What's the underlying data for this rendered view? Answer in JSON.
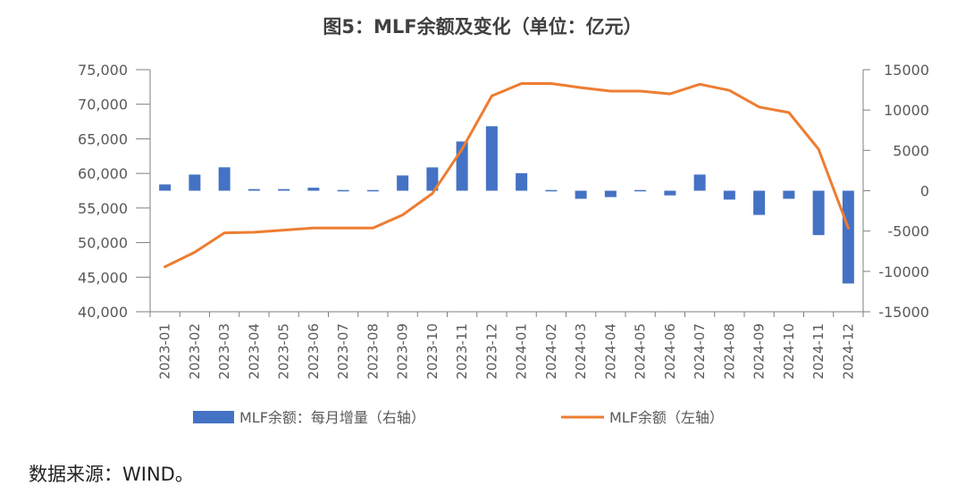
{
  "chart_data": {
    "type": "bar+line",
    "title": "图5：MLF余额及变化（单位：亿元）",
    "categories": [
      "2023-01",
      "2023-02",
      "2023-03",
      "2023-04",
      "2023-05",
      "2023-06",
      "2023-07",
      "2023-08",
      "2023-09",
      "2023-10",
      "2023-11",
      "2023-12",
      "2024-01",
      "2024-02",
      "2024-03",
      "2024-04",
      "2024-05",
      "2024-06",
      "2024-07",
      "2024-08",
      "2024-09",
      "2024-10",
      "2024-11",
      "2024-12"
    ],
    "left_axis": {
      "ylim": [
        40000,
        75000
      ],
      "ticks": [
        "75,000",
        "70,000",
        "65,000",
        "60,000",
        "55,000",
        "50,000",
        "45,000",
        "40,000"
      ]
    },
    "right_axis": {
      "ylim": [
        -15000,
        15000
      ],
      "ticks": [
        "15000",
        "10000",
        "5000",
        "0",
        "-5000",
        "-10000",
        "-15000"
      ]
    },
    "series": [
      {
        "name": "MLF余额：每月增量（右轴）",
        "type": "bar",
        "axis": "right",
        "color": "#4472C4",
        "values": [
          780,
          2000,
          2900,
          200,
          200,
          370,
          80,
          80,
          1890,
          2890,
          6100,
          7990,
          2170,
          60,
          -1000,
          -790,
          0,
          -580,
          2000,
          -1100,
          -3000,
          -1000,
          -5500,
          -11500
        ]
      },
      {
        "name": "MLF余额（左轴）",
        "type": "line",
        "axis": "left",
        "color": "#ED7D31",
        "values": [
          46500,
          48600,
          51400,
          51500,
          51800,
          52100,
          52100,
          52100,
          54000,
          57100,
          63500,
          71200,
          73000,
          73000,
          72400,
          71900,
          71900,
          71500,
          72900,
          72000,
          69600,
          68800,
          63500,
          52100
        ]
      }
    ],
    "grid": false,
    "legend": "bottom"
  },
  "source": "数据来源：WIND。"
}
